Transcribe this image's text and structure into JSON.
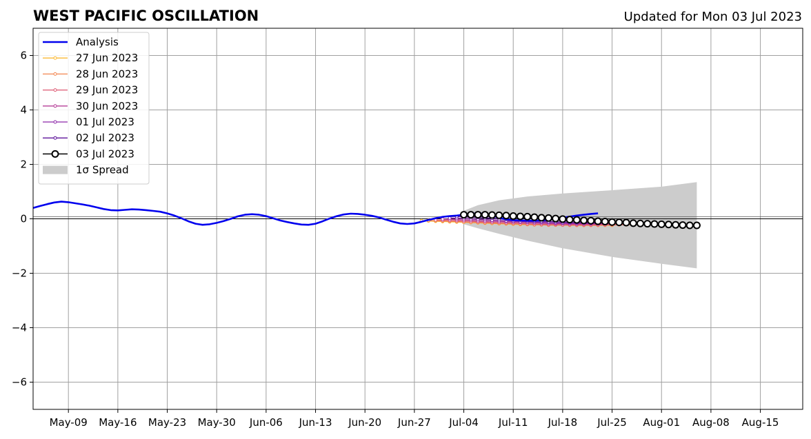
{
  "title": "WEST PACIFIC OSCILLATION",
  "updated_label": "Updated for Mon 03 Jul 2023",
  "chart_data": {
    "type": "line",
    "title": "WEST PACIFIC OSCILLATION",
    "subtitle": "Updated for Mon 03 Jul 2023",
    "xlabel": "",
    "ylabel": "",
    "xlim": [
      "2023-05-04",
      "2023-08-21"
    ],
    "ylim": [
      -7,
      7
    ],
    "grid": true,
    "legend_position": "top-left",
    "x_ticks": [
      {
        "date": "2023-05-09",
        "label": "May-09"
      },
      {
        "date": "2023-05-16",
        "label": "May-16"
      },
      {
        "date": "2023-05-23",
        "label": "May-23"
      },
      {
        "date": "2023-05-30",
        "label": "May-30"
      },
      {
        "date": "2023-06-06",
        "label": "Jun-06"
      },
      {
        "date": "2023-06-13",
        "label": "Jun-13"
      },
      {
        "date": "2023-06-20",
        "label": "Jun-20"
      },
      {
        "date": "2023-06-27",
        "label": "Jun-27"
      },
      {
        "date": "2023-07-04",
        "label": "Jul-04"
      },
      {
        "date": "2023-07-11",
        "label": "Jul-11"
      },
      {
        "date": "2023-07-18",
        "label": "Jul-18"
      },
      {
        "date": "2023-07-25",
        "label": "Jul-25"
      },
      {
        "date": "2023-08-01",
        "label": "Aug-01"
      },
      {
        "date": "2023-08-08",
        "label": "Aug-08"
      },
      {
        "date": "2023-08-15",
        "label": "Aug-15"
      }
    ],
    "y_ticks": [
      {
        "value": -6,
        "label": "−6"
      },
      {
        "value": -4,
        "label": "−4"
      },
      {
        "value": -2,
        "label": "−2"
      },
      {
        "value": 0,
        "label": "0"
      },
      {
        "value": 2,
        "label": "2"
      },
      {
        "value": 4,
        "label": "4"
      },
      {
        "value": 6,
        "label": "6"
      }
    ],
    "analysis": {
      "name": "Analysis",
      "color": "#0000ee",
      "start_date": "2023-05-04",
      "values": [
        0.4,
        0.47,
        0.54,
        0.6,
        0.63,
        0.61,
        0.57,
        0.53,
        0.48,
        0.42,
        0.36,
        0.32,
        0.31,
        0.33,
        0.35,
        0.34,
        0.32,
        0.29,
        0.26,
        0.2,
        0.12,
        0.02,
        -0.09,
        -0.18,
        -0.22,
        -0.2,
        -0.15,
        -0.08,
        0.0,
        0.09,
        0.15,
        0.17,
        0.15,
        0.1,
        0.02,
        -0.06,
        -0.12,
        -0.17,
        -0.21,
        -0.22,
        -0.18,
        -0.09,
        0.01,
        0.1,
        0.16,
        0.19,
        0.18,
        0.15,
        0.11,
        0.05,
        -0.03,
        -0.11,
        -0.17,
        -0.19,
        -0.17,
        -0.11,
        -0.04,
        0.02,
        0.07,
        0.1,
        0.12,
        0.15,
        0.19,
        0.2,
        0.18,
        0.12,
        0.04,
        -0.02,
        -0.05,
        -0.06,
        -0.07,
        -0.07,
        -0.06,
        -0.03,
        0.0,
        0.04,
        0.08,
        0.12,
        0.15,
        0.18,
        0.2
      ]
    },
    "forecasts": [
      {
        "name": "27 Jun 2023",
        "color": "#fbb832",
        "start_date": "2023-06-28",
        "values": [
          -0.07,
          -0.08,
          -0.09,
          -0.1,
          -0.11,
          -0.12,
          -0.13,
          -0.14,
          -0.15,
          -0.16,
          -0.17,
          -0.18,
          -0.19,
          -0.2,
          -0.21,
          -0.21,
          -0.22,
          -0.22,
          -0.23,
          -0.23,
          -0.23,
          -0.24,
          -0.24,
          -0.24,
          -0.24,
          -0.24,
          -0.24,
          -0.24
        ]
      },
      {
        "name": "28 Jun 2023",
        "color": "#f3844e",
        "start_date": "2023-06-29",
        "values": [
          -0.06,
          -0.07,
          -0.08,
          -0.09,
          -0.1,
          -0.12,
          -0.13,
          -0.14,
          -0.15,
          -0.16,
          -0.17,
          -0.18,
          -0.19,
          -0.2,
          -0.21,
          -0.22,
          -0.22,
          -0.23,
          -0.23,
          -0.23,
          -0.23,
          -0.24,
          -0.24,
          -0.24,
          -0.24,
          -0.23,
          -0.23,
          -0.22,
          -0.22,
          -0.21,
          -0.2
        ]
      },
      {
        "name": "29 Jun 2023",
        "color": "#dd5771",
        "start_date": "2023-06-30",
        "values": [
          -0.04,
          -0.05,
          -0.06,
          -0.07,
          -0.08,
          -0.09,
          -0.11,
          -0.12,
          -0.13,
          -0.14,
          -0.15,
          -0.16,
          -0.17,
          -0.18,
          -0.19,
          -0.2,
          -0.21,
          -0.21,
          -0.22,
          -0.22,
          -0.22,
          -0.22,
          -0.22,
          -0.22,
          -0.22,
          -0.21,
          -0.21,
          -0.2
        ]
      },
      {
        "name": "30 Jun 2023",
        "color": "#b53c97",
        "start_date": "2023-07-01",
        "values": [
          -0.01,
          -0.02,
          -0.03,
          -0.04,
          -0.05,
          -0.07,
          -0.08,
          -0.09,
          -0.1,
          -0.11,
          -0.12,
          -0.13,
          -0.14,
          -0.15,
          -0.16,
          -0.17,
          -0.18,
          -0.18,
          -0.19,
          -0.19,
          -0.19,
          -0.19,
          -0.19,
          -0.19,
          -0.19
        ]
      },
      {
        "name": "01 Jul 2023",
        "color": "#8b24a8",
        "start_date": "2023-07-02",
        "values": [
          0.03,
          0.02,
          0.01,
          0.0,
          -0.02,
          -0.03,
          -0.05,
          -0.06,
          -0.08,
          -0.09,
          -0.1,
          -0.11,
          -0.12,
          -0.13,
          -0.14,
          -0.15,
          -0.16,
          -0.16,
          -0.17,
          -0.17,
          -0.17,
          -0.17,
          -0.17
        ]
      },
      {
        "name": "02 Jul 2023",
        "color": "#5b1099",
        "start_date": "2023-07-03",
        "values": [
          0.08,
          0.07,
          0.06,
          0.05,
          0.03,
          0.02,
          0.0,
          -0.02,
          -0.04,
          -0.05,
          -0.07,
          -0.08,
          -0.09,
          -0.1,
          -0.11,
          -0.12,
          -0.13,
          -0.14,
          -0.14,
          -0.15,
          -0.15,
          -0.15
        ]
      },
      {
        "name": "03 Jul 2023",
        "color": "#000000",
        "start_date": "2023-07-04",
        "values": [
          0.15,
          0.15,
          0.15,
          0.15,
          0.14,
          0.13,
          0.12,
          0.1,
          0.09,
          0.08,
          0.06,
          0.04,
          0.03,
          0.01,
          -0.01,
          -0.03,
          -0.04,
          -0.06,
          -0.07,
          -0.09,
          -0.1,
          -0.12,
          -0.13,
          -0.14,
          -0.16,
          -0.17,
          -0.18,
          -0.19,
          -0.2,
          -0.21,
          -0.22,
          -0.23,
          -0.24,
          -0.24
        ]
      }
    ],
    "spread": {
      "name": "1σ Spread",
      "color": "#cccccc",
      "start_date": "2023-07-04",
      "end_date": "2023-08-06",
      "upper": [
        {
          "date": "2023-07-04",
          "value": 0.3
        },
        {
          "date": "2023-07-06",
          "value": 0.5
        },
        {
          "date": "2023-07-09",
          "value": 0.68
        },
        {
          "date": "2023-07-13",
          "value": 0.82
        },
        {
          "date": "2023-07-18",
          "value": 0.93
        },
        {
          "date": "2023-07-25",
          "value": 1.05
        },
        {
          "date": "2023-08-01",
          "value": 1.18
        },
        {
          "date": "2023-08-06",
          "value": 1.35
        }
      ],
      "lower": [
        {
          "date": "2023-07-04",
          "value": -0.2
        },
        {
          "date": "2023-07-06",
          "value": -0.35
        },
        {
          "date": "2023-07-09",
          "value": -0.55
        },
        {
          "date": "2023-07-13",
          "value": -0.8
        },
        {
          "date": "2023-07-18",
          "value": -1.08
        },
        {
          "date": "2023-07-25",
          "value": -1.4
        },
        {
          "date": "2023-08-01",
          "value": -1.65
        },
        {
          "date": "2023-08-06",
          "value": -1.82
        }
      ]
    }
  }
}
